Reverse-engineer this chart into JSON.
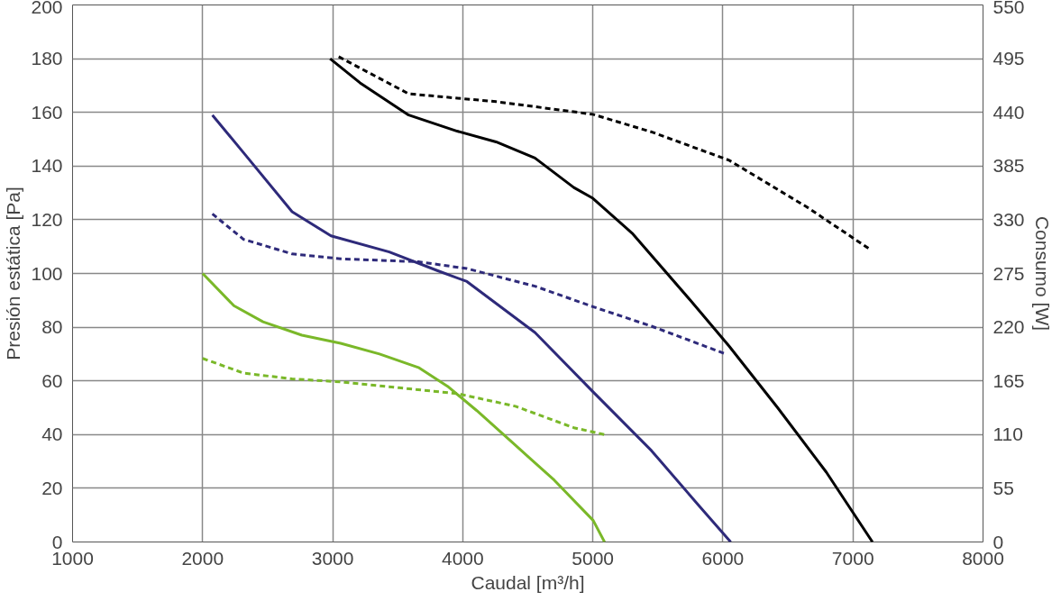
{
  "chart_data": {
    "type": "line",
    "xlabel": "Caudal [m³/h]",
    "ylabel": "Presión estática [Pa]",
    "y2label": "Consumo [W]",
    "xlim": [
      1000,
      8000
    ],
    "xticks": [
      1000,
      2000,
      3000,
      4000,
      5000,
      6000,
      7000,
      8000
    ],
    "ylim": [
      0,
      200
    ],
    "yticks": [
      0,
      20,
      40,
      60,
      80,
      100,
      120,
      140,
      160,
      180,
      200
    ],
    "y2lim": [
      0,
      550
    ],
    "y2ticks": [
      0,
      55,
      110,
      165,
      220,
      275,
      330,
      385,
      440,
      495,
      550
    ],
    "grid": true,
    "marker": "none",
    "series": [
      {
        "color": "#000000",
        "line_style": "solid",
        "x": [
          2980,
          3210,
          3584,
          3957,
          4256,
          4555,
          4854,
          5000,
          5302,
          5750,
          6047,
          6421,
          6795,
          7150
        ],
        "values": [
          180,
          171,
          159,
          153,
          149,
          143,
          132,
          128,
          115,
          90,
          73,
          50,
          26,
          0
        ]
      },
      {
        "color": "#000000",
        "line_style": "dashed",
        "axis": "y2",
        "x": [
          3046,
          3584,
          4256,
          5000,
          5451,
          6047,
          6646,
          7139
        ],
        "values": [
          497,
          459,
          451,
          438,
          420,
          391,
          343,
          299
        ]
      },
      {
        "color": "#2e2a7a",
        "line_style": "solid",
        "x": [
          2075,
          2314,
          2688,
          2987,
          3435,
          3808,
          4032,
          4555,
          5000,
          5451,
          5825,
          6060
        ],
        "values": [
          159,
          145,
          123,
          114,
          108,
          101,
          97,
          78,
          56,
          34,
          13,
          0
        ]
      },
      {
        "color": "#2e2a7a",
        "line_style": "dashed",
        "axis": "y2",
        "x": [
          2075,
          2314,
          2688,
          3061,
          3659,
          4032,
          4555,
          5000,
          5451,
          6033
        ],
        "values": [
          336,
          310,
          295,
          290,
          287,
          280,
          262,
          241,
          221,
          192
        ]
      },
      {
        "color": "#7ab829",
        "line_style": "solid",
        "x": [
          2000,
          2240,
          2464,
          2763,
          3061,
          3360,
          3659,
          3883,
          4106,
          4405,
          4704,
          5003,
          5090
        ],
        "values": [
          100,
          88,
          82,
          77,
          74,
          70,
          65,
          58,
          49,
          36,
          23,
          8,
          0
        ]
      },
      {
        "color": "#7ab829",
        "line_style": "dashed",
        "axis": "y2",
        "x": [
          2000,
          2314,
          2688,
          3061,
          3509,
          3957,
          4405,
          4854,
          5090
        ],
        "values": [
          188,
          173,
          167,
          164,
          158,
          152,
          139,
          117,
          110
        ]
      }
    ]
  }
}
